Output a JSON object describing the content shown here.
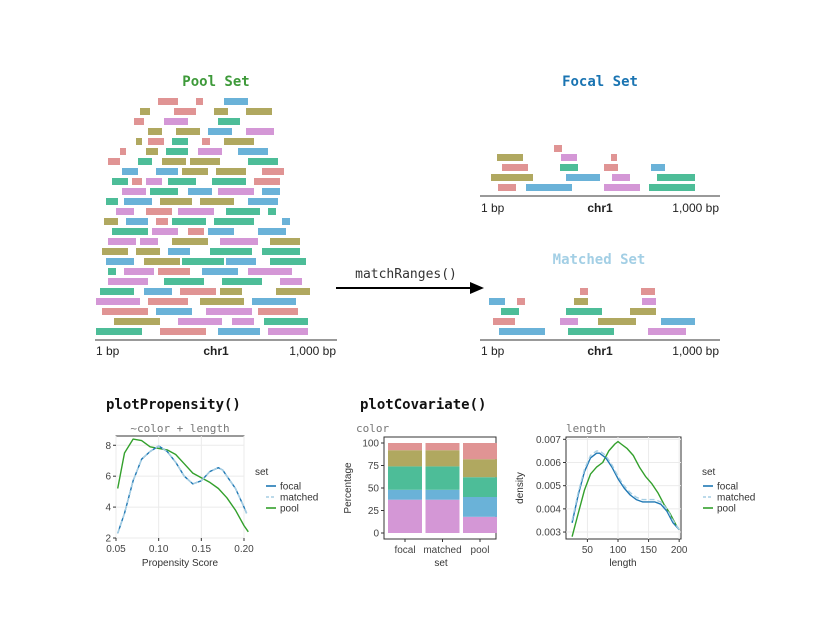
{
  "colors": {
    "red": "#e09494",
    "olive": "#b0a860",
    "green": "#4dbd98",
    "blue": "#6ab2d8",
    "purple": "#d497d6",
    "pool_title": "#3e9a3a",
    "focal_title": "#1a74b2",
    "matched_title": "#a3cfe5",
    "focal_line": "#1f78b4",
    "matched_line": "#a6cee3",
    "pool_line": "#33a02c"
  },
  "panels": {
    "pool": {
      "title": "Pool Set",
      "axis_start": "1 bp",
      "axis_chr": "chr1",
      "axis_end": "1,000 bp"
    },
    "focal": {
      "title": "Focal Set",
      "axis_start": "1 bp",
      "axis_chr": "chr1",
      "axis_end": "1,000 bp"
    },
    "matched": {
      "title": "Matched Set",
      "axis_start": "1 bp",
      "axis_chr": "chr1",
      "axis_end": "1,000 bp"
    }
  },
  "arrow": {
    "label": "matchRanges()"
  },
  "functions": {
    "propensity": "plotPropensity()",
    "covariate": "plotCovariate()"
  },
  "chart_data": [
    {
      "type": "line",
      "title": "~color + length",
      "xlabel": "Propensity Score",
      "ylabel": "",
      "xlim": [
        0.05,
        0.2
      ],
      "ylim": [
        2,
        8.6
      ],
      "xticks": [
        "0.05",
        "0.10",
        "0.15",
        "0.20"
      ],
      "yticks": [
        "2",
        "4",
        "6",
        "8"
      ],
      "legend_title": "set",
      "grid": true,
      "series": [
        {
          "name": "focal",
          "color": "#1f78b4",
          "x": [
            0.052,
            0.06,
            0.07,
            0.08,
            0.09,
            0.1,
            0.11,
            0.12,
            0.13,
            0.14,
            0.15,
            0.16,
            0.17,
            0.175,
            0.18,
            0.19,
            0.2,
            0.203
          ],
          "y": [
            2.3,
            3.6,
            5.7,
            7.1,
            7.6,
            7.95,
            7.6,
            6.9,
            6.0,
            5.5,
            5.7,
            6.3,
            6.55,
            6.4,
            6.0,
            5.2,
            4.0,
            3.6
          ]
        },
        {
          "name": "matched",
          "color": "#a6cee3",
          "x": [
            0.052,
            0.06,
            0.07,
            0.08,
            0.09,
            0.1,
            0.11,
            0.12,
            0.13,
            0.14,
            0.15,
            0.16,
            0.17,
            0.175,
            0.18,
            0.19,
            0.2,
            0.203
          ],
          "y": [
            2.3,
            3.6,
            5.7,
            7.1,
            7.6,
            7.95,
            7.6,
            6.9,
            6.0,
            5.5,
            5.7,
            6.3,
            6.55,
            6.4,
            6.0,
            5.2,
            4.0,
            3.6
          ]
        },
        {
          "name": "pool",
          "color": "#33a02c",
          "x": [
            0.052,
            0.06,
            0.07,
            0.08,
            0.09,
            0.1,
            0.11,
            0.12,
            0.13,
            0.14,
            0.15,
            0.16,
            0.17,
            0.18,
            0.19,
            0.2,
            0.205
          ],
          "y": [
            5.2,
            7.5,
            8.4,
            8.3,
            7.9,
            7.8,
            7.7,
            7.4,
            6.8,
            6.2,
            5.9,
            5.6,
            5.2,
            4.6,
            3.8,
            2.8,
            2.4
          ]
        }
      ]
    },
    {
      "type": "bar",
      "stacked": true,
      "title": "color",
      "xlabel": "set",
      "ylabel": "Percentage",
      "categories": [
        "focal",
        "matched",
        "pool"
      ],
      "ylim": [
        0,
        100
      ],
      "yticks": [
        "0",
        "25",
        "50",
        "75",
        "100"
      ],
      "series": [
        {
          "color": "#d497d6",
          "values": [
            37,
            37,
            18
          ]
        },
        {
          "color": "#6ab2d8",
          "values": [
            11,
            11,
            22
          ]
        },
        {
          "color": "#4dbd98",
          "values": [
            26,
            26,
            22
          ]
        },
        {
          "color": "#b0a860",
          "values": [
            18,
            18,
            20
          ]
        },
        {
          "color": "#e09494",
          "values": [
            8,
            8,
            18
          ]
        }
      ]
    },
    {
      "type": "line",
      "title": "length",
      "xlabel": "length",
      "ylabel": "density",
      "xlim": [
        15,
        203
      ],
      "ylim": [
        0.0027,
        0.0071
      ],
      "xticks": [
        "50",
        "100",
        "150",
        "200"
      ],
      "yticks": [
        "0.003",
        "0.004",
        "0.005",
        "0.006",
        "0.007"
      ],
      "legend_title": "set",
      "grid": true,
      "series": [
        {
          "name": "focal",
          "color": "#1f78b4",
          "x": [
            25,
            35,
            45,
            55,
            65,
            70,
            80,
            90,
            100,
            110,
            120,
            130,
            140,
            150,
            160,
            170,
            180,
            190,
            200
          ],
          "y": [
            0.0034,
            0.0046,
            0.0056,
            0.0062,
            0.0064,
            0.0064,
            0.0062,
            0.0058,
            0.0053,
            0.0049,
            0.0046,
            0.0044,
            0.0043,
            0.0043,
            0.0043,
            0.0042,
            0.0039,
            0.0034,
            0.0031
          ]
        },
        {
          "name": "matched",
          "color": "#a6cee3",
          "x": [
            25,
            35,
            45,
            55,
            65,
            70,
            80,
            90,
            100,
            110,
            120,
            130,
            140,
            150,
            160,
            170,
            180,
            190,
            200
          ],
          "y": [
            0.0035,
            0.0047,
            0.0057,
            0.0063,
            0.0065,
            0.0065,
            0.0063,
            0.0059,
            0.0054,
            0.005,
            0.0047,
            0.0045,
            0.0044,
            0.0044,
            0.0044,
            0.0043,
            0.004,
            0.0035,
            0.0031
          ]
        },
        {
          "name": "pool",
          "color": "#33a02c",
          "x": [
            25,
            35,
            45,
            55,
            65,
            75,
            85,
            95,
            100,
            105,
            115,
            125,
            135,
            145,
            155,
            165,
            175,
            185,
            195,
            200
          ],
          "y": [
            0.0028,
            0.0038,
            0.0048,
            0.0055,
            0.0058,
            0.006,
            0.0065,
            0.0068,
            0.0069,
            0.0068,
            0.0066,
            0.0063,
            0.0058,
            0.0054,
            0.0051,
            0.0047,
            0.0042,
            0.0038,
            0.0033,
            0.0031
          ]
        }
      ]
    }
  ]
}
